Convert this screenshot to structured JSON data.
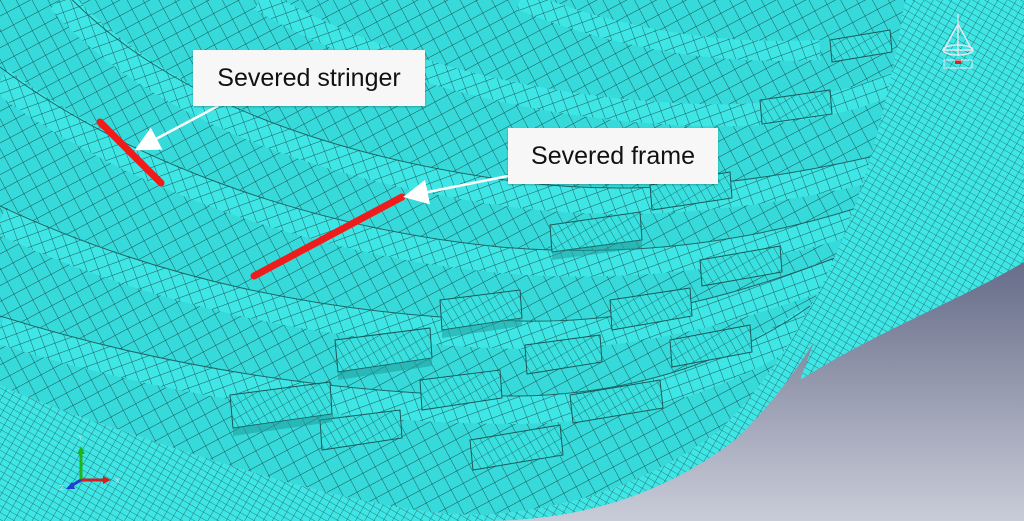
{
  "annotations": {
    "stringer_label": "Severed stringer",
    "frame_label": "Severed frame"
  },
  "triad": {
    "x": "X",
    "y": "Y",
    "z": "Z"
  },
  "colors": {
    "mesh_fill": "#3fe6e6",
    "mesh_fill_shadow": "#23bcbc",
    "mesh_line": "#1c5a5a",
    "background_top": "#33385a",
    "background_bottom": "#c9ccd8",
    "cut_marker": "#ef1c1c",
    "leader_arrow": "#ffffff",
    "callout_bg": "#f7f7f7"
  },
  "icons": [
    "view-cube-icon",
    "axis-triad-icon"
  ]
}
